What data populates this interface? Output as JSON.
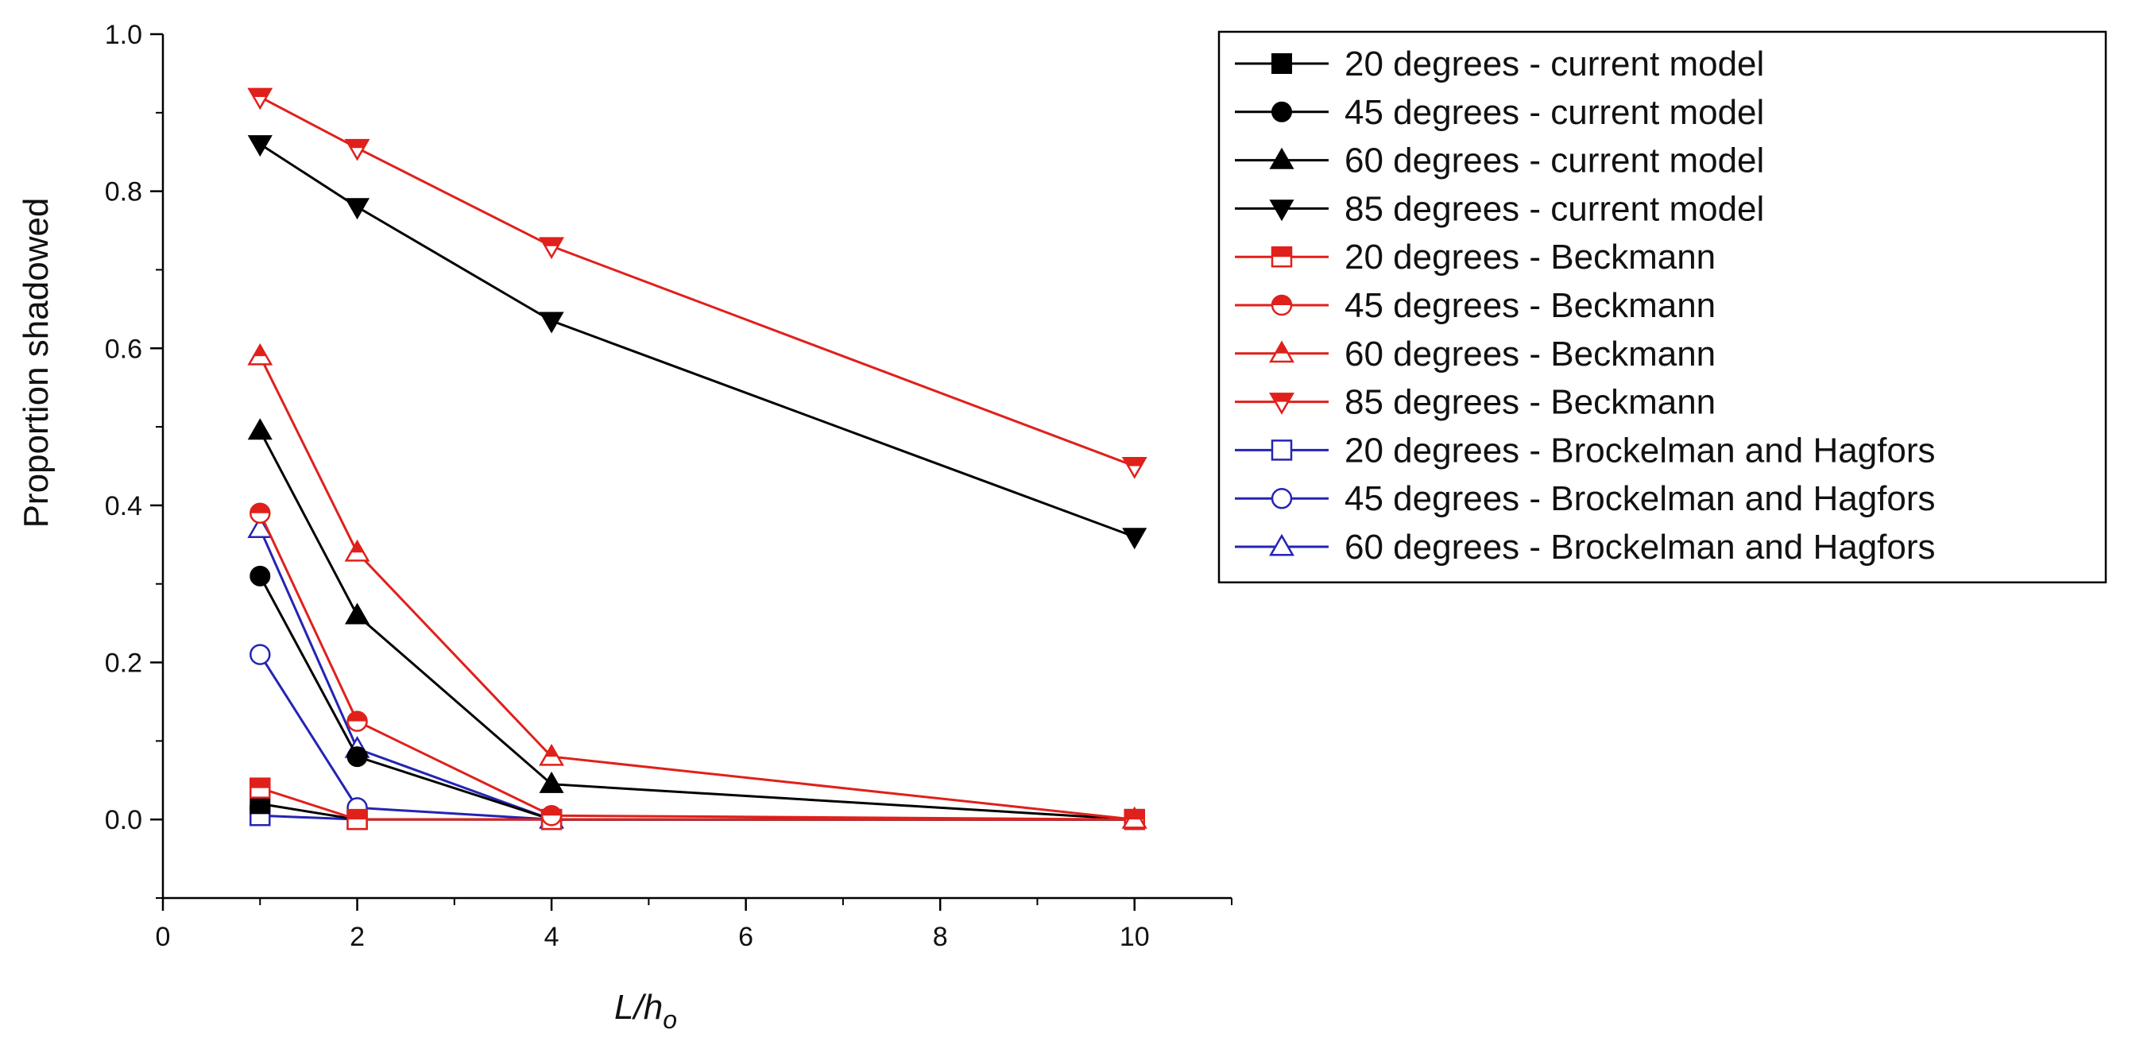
{
  "chart_data": {
    "type": "line",
    "title": "",
    "xlabel": {
      "main": "L/h",
      "subscript": "o"
    },
    "ylabel": "Proportion shadowed",
    "x_display": [
      0,
      2,
      4,
      6,
      8,
      10
    ],
    "x_ticks": [
      {
        "value": 0,
        "label": "0"
      },
      {
        "value": 2,
        "label": "2"
      },
      {
        "value": 4,
        "label": "4"
      },
      {
        "value": 6,
        "label": "6"
      },
      {
        "value": 8,
        "label": "8"
      },
      {
        "value": 10,
        "label": "10"
      }
    ],
    "y_ticks": [
      {
        "value": 0.0,
        "label": "0.0"
      },
      {
        "value": 0.2,
        "label": "0.2"
      },
      {
        "value": 0.4,
        "label": "0.4"
      },
      {
        "value": 0.6,
        "label": "0.6"
      },
      {
        "value": 0.8,
        "label": "0.8"
      },
      {
        "value": 1.0,
        "label": "1.0"
      }
    ],
    "xlim": [
      0,
      11
    ],
    "ylim": [
      -0.1,
      1.0
    ],
    "grid": false,
    "legend_position": "right",
    "series": [
      {
        "name": "20 degrees - current model",
        "color": "#000000",
        "marker": "square",
        "filled": true,
        "x": [
          1,
          2,
          4,
          10
        ],
        "y": [
          0.02,
          0.0,
          0.0,
          0.0
        ]
      },
      {
        "name": "45 degrees - current model",
        "color": "#000000",
        "marker": "circle",
        "filled": true,
        "x": [
          1,
          2,
          4,
          10
        ],
        "y": [
          0.31,
          0.08,
          0.0,
          0.0
        ]
      },
      {
        "name": "60 degrees - current model",
        "color": "#000000",
        "marker": "triangle-up",
        "filled": true,
        "x": [
          1,
          2,
          4,
          10
        ],
        "y": [
          0.495,
          0.26,
          0.045,
          0.0
        ]
      },
      {
        "name": "85 degrees - current model",
        "color": "#000000",
        "marker": "triangle-down",
        "filled": true,
        "x": [
          1,
          2,
          4,
          10
        ],
        "y": [
          0.86,
          0.78,
          0.635,
          0.36
        ]
      },
      {
        "name": "20 degrees - Beckmann",
        "color": "#e0201b",
        "marker": "square",
        "filled": "half",
        "x": [
          1,
          2,
          4,
          10
        ],
        "y": [
          0.04,
          0.0,
          0.0,
          0.0
        ]
      },
      {
        "name": "45 degrees - Beckmann",
        "color": "#e0201b",
        "marker": "circle",
        "filled": "half",
        "x": [
          1,
          2,
          4,
          10
        ],
        "y": [
          0.39,
          0.125,
          0.005,
          0.0
        ]
      },
      {
        "name": "60 degrees - Beckmann",
        "color": "#e0201b",
        "marker": "triangle-up",
        "filled": "half",
        "x": [
          1,
          2,
          4,
          10
        ],
        "y": [
          0.59,
          0.34,
          0.08,
          0.0
        ]
      },
      {
        "name": "85 degrees - Beckmann",
        "color": "#e0201b",
        "marker": "triangle-down",
        "filled": "half",
        "x": [
          1,
          2,
          4,
          10
        ],
        "y": [
          0.92,
          0.855,
          0.73,
          0.45
        ]
      },
      {
        "name": "20 degrees - Brockelman and Hagfors",
        "color": "#2424b4",
        "marker": "square",
        "filled": false,
        "x": [
          1,
          2,
          4,
          10
        ],
        "y": [
          0.005,
          0.0,
          0.0,
          0.0
        ]
      },
      {
        "name": "45 degrees - Brockelman and Hagfors",
        "color": "#2424b4",
        "marker": "circle",
        "filled": false,
        "x": [
          1,
          2,
          4,
          10
        ],
        "y": [
          0.21,
          0.015,
          0.0,
          0.0
        ]
      },
      {
        "name": "60 degrees - Brockelman and Hagfors",
        "color": "#2424b4",
        "marker": "triangle-up",
        "filled": false,
        "x": [
          1,
          2,
          4,
          10
        ],
        "y": [
          0.37,
          0.09,
          0.0,
          0.0
        ]
      }
    ]
  }
}
